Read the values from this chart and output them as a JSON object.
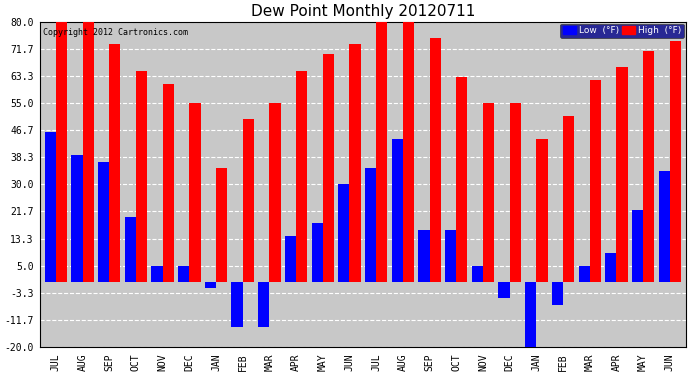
{
  "title": "Dew Point Monthly 20120711",
  "copyright": "Copyright 2012 Cartronics.com",
  "months": [
    "JUL",
    "AUG",
    "SEP",
    "OCT",
    "NOV",
    "DEC",
    "JAN",
    "FEB",
    "MAR",
    "APR",
    "MAY",
    "JUN",
    "JUL",
    "AUG",
    "SEP",
    "OCT",
    "NOV",
    "DEC",
    "JAN",
    "FEB",
    "MAR",
    "APR",
    "MAY",
    "JUN"
  ],
  "high": [
    80,
    80,
    73,
    65,
    61,
    55,
    35,
    50,
    55,
    65,
    70,
    73,
    82,
    80,
    75,
    63,
    55,
    55,
    44,
    51,
    62,
    66,
    71,
    74
  ],
  "low": [
    46,
    39,
    37,
    20,
    5,
    5,
    -2,
    -14,
    -14,
    14,
    18,
    30,
    35,
    44,
    16,
    16,
    5,
    -5,
    -20,
    -7,
    5,
    9,
    22,
    34
  ],
  "ylim": [
    -20,
    80
  ],
  "yticks": [
    -20.0,
    -11.7,
    -3.3,
    5.0,
    13.3,
    21.7,
    30.0,
    38.3,
    46.7,
    55.0,
    63.3,
    71.7,
    80.0
  ],
  "high_color": "#ff0000",
  "low_color": "#0000ff",
  "background_color": "#ffffff",
  "plot_bg_color": "#c8c8c8",
  "bar_width": 0.42,
  "legend_high_label": "High  (°F)",
  "legend_low_label": "Low  (°F)"
}
